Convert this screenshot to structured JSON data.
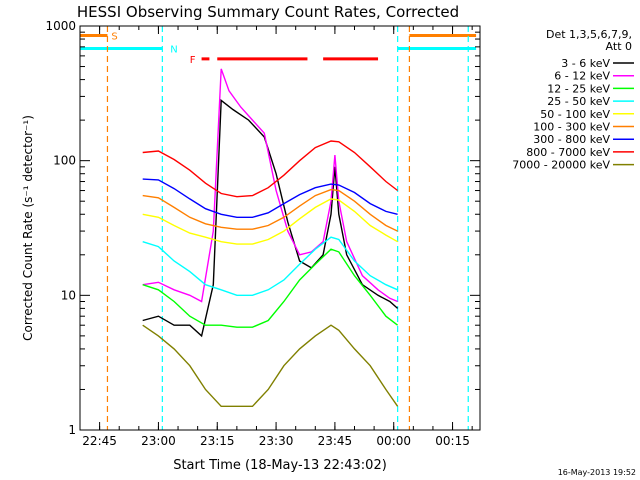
{
  "chart_data": {
    "type": "line",
    "title": "HESSI Observing Summary Count Rates, Corrected",
    "xlabel": "Start Time (18-May-13 22:43:02)",
    "ylabel": "Corrected Count Rate (s⁻¹ detector⁻¹)",
    "y_scale": "log",
    "ylim": [
      1,
      1000
    ],
    "xlim": [
      "22:40",
      "00:22"
    ],
    "x_ticks": [
      "22:45",
      "23:00",
      "23:15",
      "23:30",
      "23:45",
      "00:00",
      "00:15"
    ],
    "y_ticks": [
      {
        "value": 1,
        "label": "1"
      },
      {
        "value": 10,
        "label": "10"
      },
      {
        "value": 100,
        "label": "100"
      },
      {
        "value": 1000,
        "label": "1000"
      }
    ],
    "legend": {
      "placement": "right",
      "header": [
        "Det 1,3,5,6,7,9,",
        "Att 0"
      ]
    },
    "timestamp": "16-May-2013 19:52",
    "flags": [
      {
        "label": "S",
        "color": "#ff7f00",
        "y": 850,
        "segments": [
          [
            "22:40",
            "22:47"
          ],
          [
            "00:04",
            "00:21"
          ]
        ],
        "label_at": "22:48"
      },
      {
        "label": "N",
        "color": "#00ffff",
        "y": 680,
        "segments": [
          [
            "22:40",
            "23:01"
          ],
          [
            "00:01",
            "00:21"
          ]
        ],
        "label_at": "23:03"
      },
      {
        "label": "F",
        "color": "#ff0000",
        "y": 570,
        "segments": [
          [
            "23:11",
            "23:13"
          ],
          [
            "23:15",
            "23:38"
          ],
          [
            "23:42",
            "23:56"
          ]
        ],
        "label_at": "23:08"
      }
    ],
    "markers": [
      {
        "time": "22:47",
        "color": "#ff7f00"
      },
      {
        "time": "23:01",
        "color": "#00ffff"
      },
      {
        "time": "00:01",
        "color": "#00ffff"
      },
      {
        "time": "00:04",
        "color": "#ff7f00"
      },
      {
        "time": "00:19",
        "color": "#00ffff"
      }
    ],
    "series": [
      {
        "name": "3 - 6 keV",
        "color": "#000000",
        "points": [
          [
            "22:56",
            6.5
          ],
          [
            "23:00",
            7
          ],
          [
            "23:04",
            6
          ],
          [
            "23:08",
            6
          ],
          [
            "23:11",
            5
          ],
          [
            "23:14",
            12
          ],
          [
            "23:16",
            280
          ],
          [
            "23:19",
            240
          ],
          [
            "23:23",
            200
          ],
          [
            "23:27",
            150
          ],
          [
            "23:30",
            80
          ],
          [
            "23:33",
            35
          ],
          [
            "23:36",
            18
          ],
          [
            "23:39",
            16
          ],
          [
            "23:42",
            20
          ],
          [
            "23:44",
            40
          ],
          [
            "23:45",
            90
          ],
          [
            "23:46",
            40
          ],
          [
            "23:48",
            20
          ],
          [
            "23:52",
            12
          ],
          [
            "23:56",
            10
          ],
          [
            "23:59",
            9
          ],
          [
            "00:01",
            8
          ]
        ]
      },
      {
        "name": "6 - 12 keV",
        "color": "#ff00ff",
        "points": [
          [
            "22:56",
            12
          ],
          [
            "23:00",
            12.5
          ],
          [
            "23:04",
            11
          ],
          [
            "23:08",
            10
          ],
          [
            "23:11",
            9
          ],
          [
            "23:14",
            30
          ],
          [
            "23:16",
            480
          ],
          [
            "23:18",
            330
          ],
          [
            "23:21",
            250
          ],
          [
            "23:24",
            200
          ],
          [
            "23:27",
            160
          ],
          [
            "23:30",
            60
          ],
          [
            "23:33",
            30
          ],
          [
            "23:36",
            20
          ],
          [
            "23:39",
            21
          ],
          [
            "23:42",
            25
          ],
          [
            "23:44",
            50
          ],
          [
            "23:45",
            110
          ],
          [
            "23:46",
            50
          ],
          [
            "23:48",
            25
          ],
          [
            "23:52",
            14
          ],
          [
            "23:56",
            11
          ],
          [
            "23:59",
            9.5
          ],
          [
            "00:01",
            9
          ]
        ]
      },
      {
        "name": "12 - 25 keV",
        "color": "#00ff00",
        "points": [
          [
            "22:56",
            12
          ],
          [
            "23:00",
            11
          ],
          [
            "23:04",
            9
          ],
          [
            "23:08",
            7
          ],
          [
            "23:12",
            6
          ],
          [
            "23:16",
            6
          ],
          [
            "23:20",
            5.8
          ],
          [
            "23:24",
            5.8
          ],
          [
            "23:28",
            6.5
          ],
          [
            "23:32",
            9
          ],
          [
            "23:36",
            13
          ],
          [
            "23:40",
            17
          ],
          [
            "23:44",
            22
          ],
          [
            "23:46",
            21
          ],
          [
            "23:50",
            14
          ],
          [
            "23:54",
            10
          ],
          [
            "23:58",
            7
          ],
          [
            "00:01",
            6
          ]
        ]
      },
      {
        "name": "25 - 50 keV",
        "color": "#00ffff",
        "points": [
          [
            "22:56",
            25
          ],
          [
            "23:00",
            23
          ],
          [
            "23:04",
            18
          ],
          [
            "23:08",
            15
          ],
          [
            "23:12",
            12
          ],
          [
            "23:16",
            11
          ],
          [
            "23:20",
            10
          ],
          [
            "23:24",
            10
          ],
          [
            "23:28",
            11
          ],
          [
            "23:32",
            13
          ],
          [
            "23:36",
            17
          ],
          [
            "23:40",
            22
          ],
          [
            "23:44",
            27
          ],
          [
            "23:46",
            26
          ],
          [
            "23:50",
            18
          ],
          [
            "23:54",
            14
          ],
          [
            "23:58",
            12
          ],
          [
            "00:01",
            11
          ]
        ]
      },
      {
        "name": "50 - 100 keV",
        "color": "#ffff00",
        "points": [
          [
            "22:56",
            40
          ],
          [
            "23:00",
            38
          ],
          [
            "23:04",
            33
          ],
          [
            "23:08",
            29
          ],
          [
            "23:12",
            27
          ],
          [
            "23:16",
            25
          ],
          [
            "23:20",
            24
          ],
          [
            "23:24",
            24
          ],
          [
            "23:28",
            26
          ],
          [
            "23:32",
            30
          ],
          [
            "23:36",
            37
          ],
          [
            "23:40",
            45
          ],
          [
            "23:44",
            52
          ],
          [
            "23:46",
            51
          ],
          [
            "23:50",
            42
          ],
          [
            "23:54",
            33
          ],
          [
            "23:58",
            28
          ],
          [
            "00:01",
            25
          ]
        ]
      },
      {
        "name": "100 - 300 keV",
        "color": "#ff7f00",
        "points": [
          [
            "22:56",
            55
          ],
          [
            "23:00",
            53
          ],
          [
            "23:04",
            45
          ],
          [
            "23:08",
            38
          ],
          [
            "23:12",
            34
          ],
          [
            "23:16",
            32
          ],
          [
            "23:20",
            31
          ],
          [
            "23:24",
            31
          ],
          [
            "23:28",
            33
          ],
          [
            "23:32",
            38
          ],
          [
            "23:36",
            46
          ],
          [
            "23:40",
            55
          ],
          [
            "23:44",
            61
          ],
          [
            "23:46",
            60
          ],
          [
            "23:50",
            50
          ],
          [
            "23:54",
            40
          ],
          [
            "23:58",
            33
          ],
          [
            "00:01",
            30
          ]
        ]
      },
      {
        "name": "300 - 800 keV",
        "color": "#0000ff",
        "points": [
          [
            "22:56",
            73
          ],
          [
            "23:00",
            72
          ],
          [
            "23:04",
            62
          ],
          [
            "23:08",
            52
          ],
          [
            "23:12",
            44
          ],
          [
            "23:16",
            40
          ],
          [
            "23:20",
            38
          ],
          [
            "23:24",
            38
          ],
          [
            "23:28",
            41
          ],
          [
            "23:32",
            48
          ],
          [
            "23:36",
            56
          ],
          [
            "23:40",
            63
          ],
          [
            "23:44",
            67
          ],
          [
            "23:46",
            66
          ],
          [
            "23:50",
            58
          ],
          [
            "23:54",
            48
          ],
          [
            "23:58",
            42
          ],
          [
            "00:01",
            40
          ]
        ]
      },
      {
        "name": "800 - 7000 keV",
        "color": "#ff0000",
        "points": [
          [
            "22:56",
            115
          ],
          [
            "23:00",
            118
          ],
          [
            "23:04",
            102
          ],
          [
            "23:08",
            85
          ],
          [
            "23:12",
            68
          ],
          [
            "23:16",
            57
          ],
          [
            "23:20",
            54
          ],
          [
            "23:24",
            55
          ],
          [
            "23:28",
            63
          ],
          [
            "23:32",
            78
          ],
          [
            "23:36",
            100
          ],
          [
            "23:40",
            125
          ],
          [
            "23:44",
            140
          ],
          [
            "23:46",
            138
          ],
          [
            "23:50",
            115
          ],
          [
            "23:54",
            90
          ],
          [
            "23:58",
            70
          ],
          [
            "00:01",
            60
          ]
        ]
      },
      {
        "name": "7000 - 20000 keV",
        "color": "#808000",
        "points": [
          [
            "22:56",
            6
          ],
          [
            "23:00",
            5
          ],
          [
            "23:04",
            4
          ],
          [
            "23:08",
            3
          ],
          [
            "23:12",
            2
          ],
          [
            "23:16",
            1.5
          ],
          [
            "23:20",
            1.5
          ],
          [
            "23:24",
            1.5
          ],
          [
            "23:28",
            2
          ],
          [
            "23:32",
            3
          ],
          [
            "23:36",
            4
          ],
          [
            "23:40",
            5
          ],
          [
            "23:44",
            6
          ],
          [
            "23:46",
            5.5
          ],
          [
            "23:50",
            4
          ],
          [
            "23:54",
            3
          ],
          [
            "23:58",
            2
          ],
          [
            "00:01",
            1.5
          ]
        ]
      }
    ]
  }
}
